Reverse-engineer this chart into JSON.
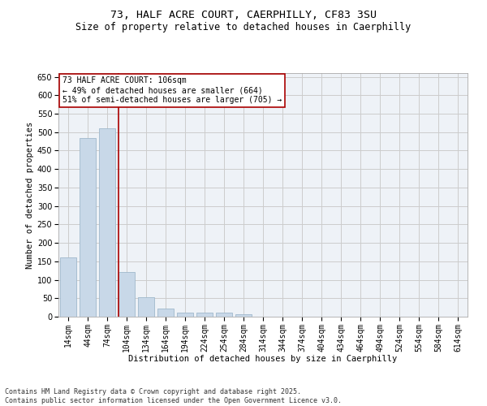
{
  "title_line1": "73, HALF ACRE COURT, CAERPHILLY, CF83 3SU",
  "title_line2": "Size of property relative to detached houses in Caerphilly",
  "xlabel": "Distribution of detached houses by size in Caerphilly",
  "ylabel": "Number of detached properties",
  "categories": [
    "14sqm",
    "44sqm",
    "74sqm",
    "104sqm",
    "134sqm",
    "164sqm",
    "194sqm",
    "224sqm",
    "254sqm",
    "284sqm",
    "314sqm",
    "344sqm",
    "374sqm",
    "404sqm",
    "434sqm",
    "464sqm",
    "494sqm",
    "524sqm",
    "554sqm",
    "584sqm",
    "614sqm"
  ],
  "values": [
    160,
    483,
    510,
    120,
    52,
    22,
    11,
    10,
    10,
    7,
    0,
    0,
    0,
    0,
    0,
    0,
    0,
    0,
    0,
    0,
    0
  ],
  "bar_color": "#c8d8e8",
  "bar_edge_color": "#a0b8cc",
  "vline_color": "#aa0000",
  "annotation_text": "73 HALF ACRE COURT: 106sqm\n← 49% of detached houses are smaller (664)\n51% of semi-detached houses are larger (705) →",
  "annotation_box_color": "#aa0000",
  "ylim": [
    0,
    660
  ],
  "yticks": [
    0,
    50,
    100,
    150,
    200,
    250,
    300,
    350,
    400,
    450,
    500,
    550,
    600,
    650
  ],
  "grid_color": "#cccccc",
  "bg_color": "#eef2f7",
  "footer": "Contains HM Land Registry data © Crown copyright and database right 2025.\nContains public sector information licensed under the Open Government Licence v3.0.",
  "title_fontsize": 9.5,
  "subtitle_fontsize": 8.5,
  "axis_label_fontsize": 7.5,
  "tick_fontsize": 7,
  "annotation_fontsize": 7,
  "footer_fontsize": 6
}
